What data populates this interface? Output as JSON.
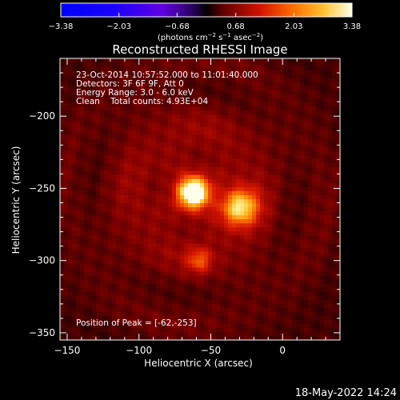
{
  "colorbar": {
    "ticks": [
      "-3.38",
      "-2.03",
      "-0.68",
      "0.68",
      "2.03",
      "3.38"
    ],
    "range": [
      -3.38,
      3.38
    ],
    "units_text": "(photons cm",
    "units_sup1": "−2",
    "units_mid": " s",
    "units_sup2": "−1",
    "units_mid2": " asec",
    "units_sup3": "−2",
    "units_end": ")",
    "colormap": "red-temperature"
  },
  "chart_data": {
    "type": "heatmap",
    "title": "Reconstructed RHESSI Image",
    "xlabel": "Heliocentric X (arcsec)",
    "ylabel": "Heliocentric Y (arcsec)",
    "xlim": [
      -155,
      40
    ],
    "ylim": [
      -355,
      -160
    ],
    "xticks": [
      -150,
      -100,
      -50,
      0
    ],
    "yticks": [
      -200,
      -250,
      -300,
      -350
    ],
    "x_tick_labels": [
      "−150",
      "−100",
      "−50",
      "0"
    ],
    "y_tick_labels": [
      "−200",
      "−250",
      "−300",
      "−350"
    ],
    "sources": [
      {
        "x": -62,
        "y": -253,
        "relative_intensity": 1.0
      },
      {
        "x": -30,
        "y": -263,
        "relative_intensity": 0.75
      },
      {
        "x": -58,
        "y": -300,
        "relative_intensity": 0.35
      }
    ],
    "peak_position": [
      -62,
      -253
    ]
  },
  "info": {
    "line1": "23-Oct-2014 10:57:52.000 to 11:01:40.000",
    "line2": "Detectors: 3F 6F 9F, Att 0",
    "line3": "Energy Range: 3.0 - 6.0 keV",
    "line4": "Clean    Total counts: 4.93E+04",
    "peak": "Position of Peak = [-62,-253]"
  },
  "footer": {
    "timestamp": "18-May-2022 14:24"
  }
}
